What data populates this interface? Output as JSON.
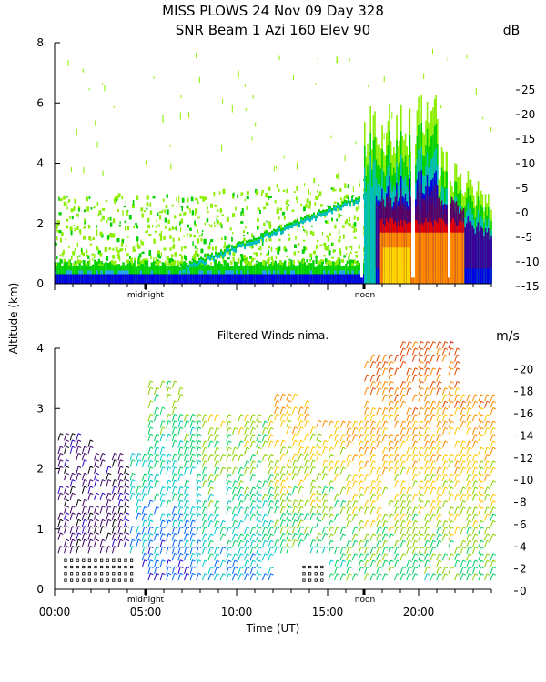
{
  "title_line1": "MISS PLOWS  24 Nov 09 Day 328",
  "title_line2": "SNR Beam 1 Azi 160 Elev 90",
  "ylabel": "Altitude (km)",
  "xlabel": "Time (UT)",
  "midnight_label": "midnight",
  "noon_label": "noon",
  "chart_data": [
    {
      "type": "heatmap",
      "title": "SNR Beam 1 Azi 160 Elev 90",
      "xlabel": "",
      "ylabel": "Altitude (km)",
      "xlim": [
        0,
        24
      ],
      "ylim": [
        0,
        8
      ],
      "yticks": [
        "0",
        "2",
        "4",
        "6",
        "8"
      ],
      "colorbar": {
        "unit": "dB",
        "ticks": [
          "-15",
          "-10",
          "-5",
          "0",
          "5",
          "10",
          "15",
          "20",
          "25"
        ],
        "levels": [
          -15,
          -10,
          -5,
          0,
          5,
          10,
          15,
          20,
          25,
          30
        ],
        "colors": [
          "#8cee00",
          "#00d000",
          "#00bcbc",
          "#28a0ff",
          "#0000e6",
          "#3c0096",
          "#5a0064",
          "#e60000",
          "#ff8c00",
          "#ffd700"
        ]
      },
      "regions": [
        {
          "x": [
            0,
            24
          ],
          "y": [
            0,
            0.5
          ],
          "level": "-5 to 10"
        },
        {
          "x": [
            0,
            17
          ],
          "y": [
            0.5,
            2.4
          ],
          "level": "-15 to -10"
        },
        {
          "x": [
            17,
            24
          ],
          "y": [
            0,
            6.8
          ],
          "level": "-15 to 30"
        }
      ]
    },
    {
      "type": "scatter",
      "title": "Filtered Winds nima.",
      "xlabel": "Time (UT)",
      "ylabel": "Altitude (km)",
      "xlim": [
        0,
        24
      ],
      "ylim": [
        0,
        4
      ],
      "xticks": [
        "00:00",
        "05:00",
        "10:00",
        "15:00",
        "20:00"
      ],
      "yticks": [
        "0",
        "1",
        "2",
        "3",
        "4"
      ],
      "colorbar": {
        "unit": "m/s",
        "ticks": [
          "0",
          "2",
          "4",
          "6",
          "8",
          "10",
          "12",
          "14",
          "16",
          "18",
          "20"
        ],
        "levels": [
          0,
          2,
          4,
          6,
          8,
          10,
          12,
          14,
          16,
          18,
          20,
          22
        ],
        "colors": [
          "#000000",
          "#3c0064",
          "#2800c8",
          "#0064ff",
          "#00c8c8",
          "#00d264",
          "#8cd200",
          "#ffc800",
          "#ff8c00",
          "#e64600",
          "#e60000"
        ]
      }
    }
  ]
}
